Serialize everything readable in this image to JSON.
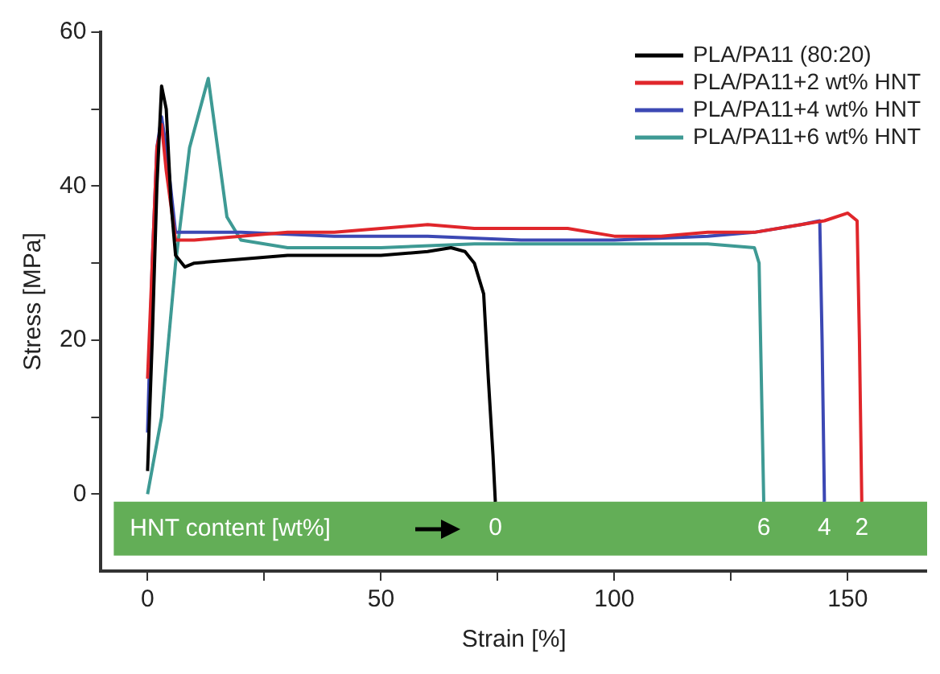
{
  "chart_data": {
    "type": "line",
    "xlabel": "Strain [%]",
    "ylabel": "Stress [MPa]",
    "xlim": [
      -10,
      167
    ],
    "ylim": [
      -10,
      60
    ],
    "xticks": [
      0,
      {
        "value": 25,
        "label": null
      },
      50,
      {
        "value": 75,
        "label": null
      },
      100,
      {
        "value": 125,
        "label": null
      },
      150
    ],
    "yticks": [
      0,
      {
        "value": 10,
        "label": null
      },
      20,
      {
        "value": 30,
        "label": null
      },
      40,
      {
        "value": 50,
        "label": null
      },
      60
    ],
    "grid": false,
    "legend": "top right",
    "marker": "none",
    "line_style": "solid",
    "series": [
      {
        "name": "PLA/PA11 (80:20)",
        "color": "#000000",
        "x": [
          0,
          1,
          2,
          3,
          4,
          5,
          6,
          8,
          10,
          20,
          30,
          40,
          50,
          60,
          65,
          68,
          70,
          72,
          73,
          74,
          74.5
        ],
        "values": [
          3,
          20,
          40,
          53,
          50,
          38,
          31,
          29.5,
          30,
          30.5,
          31,
          31,
          31,
          31.5,
          32,
          31.5,
          30,
          26,
          15,
          5,
          -1
        ]
      },
      {
        "name": "PLA/PA11+2 wt% HNT",
        "color": "#e0262b",
        "x": [
          0,
          1,
          2,
          3,
          4,
          6,
          10,
          20,
          30,
          40,
          50,
          60,
          70,
          80,
          90,
          100,
          110,
          120,
          130,
          140,
          145,
          150,
          152,
          152.5,
          153
        ],
        "values": [
          15,
          30,
          45,
          48,
          42,
          33,
          33,
          33.5,
          34,
          34,
          34.5,
          35,
          34.5,
          34.5,
          34.5,
          33.5,
          33.5,
          34,
          34,
          35,
          35.5,
          36.5,
          35.5,
          20,
          -1
        ]
      },
      {
        "name": "PLA/PA11+4 wt% HNT",
        "color": "#3c48b4",
        "x": [
          0,
          1,
          2,
          3,
          4,
          6,
          10,
          20,
          40,
          60,
          80,
          100,
          120,
          130,
          140,
          144,
          144.5,
          145
        ],
        "values": [
          8,
          30,
          45,
          49,
          45,
          34,
          34,
          34,
          33.5,
          33.5,
          33,
          33,
          33.5,
          34,
          35,
          35.5,
          20,
          -1
        ]
      },
      {
        "name": "PLA/PA11+6 wt% HNT",
        "color": "#3e9a94",
        "x": [
          0,
          3,
          6,
          9,
          13,
          15,
          17,
          20,
          30,
          50,
          70,
          100,
          120,
          130,
          131,
          132
        ],
        "values": [
          0,
          10,
          30,
          45,
          54,
          45,
          36,
          33,
          32,
          32,
          32.5,
          32.5,
          32.5,
          32,
          30,
          -1
        ]
      }
    ],
    "bands": [
      {
        "axis": "y",
        "from": -8,
        "to": -1,
        "label": "HNT content [wt%]",
        "color": "#63ae57"
      }
    ],
    "annotations": [
      {
        "text": "0",
        "x": 74.5,
        "y": -1
      },
      {
        "text": "6",
        "x": 132,
        "y": -1
      },
      {
        "text": "4",
        "x": 145,
        "y": -1
      },
      {
        "text": "2",
        "x": 153,
        "y": -1
      }
    ]
  }
}
